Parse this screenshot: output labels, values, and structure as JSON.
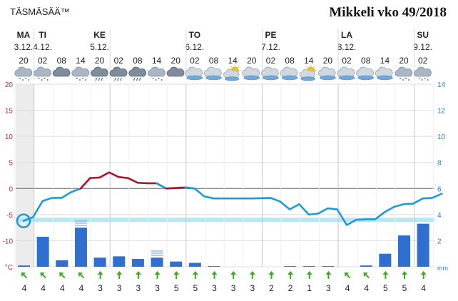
{
  "header": {
    "brand": "TÄSMÄSÄÄ™",
    "title": "Mikkeli vko 49/2018"
  },
  "chart_data": {
    "type": "line",
    "days": [
      {
        "name": "MA",
        "date": "3.12."
      },
      {
        "name": "TI",
        "date": "4.12."
      },
      {
        "name": "KE",
        "date": "5.12."
      },
      {
        "name": "TO",
        "date": "6.12."
      },
      {
        "name": "PE",
        "date": "7.12."
      },
      {
        "name": "LA",
        "date": "8.12."
      },
      {
        "name": "SU",
        "date": "9.12."
      }
    ],
    "hours": [
      "20",
      "02",
      "08",
      "14",
      "20",
      "02",
      "08",
      "14",
      "20",
      "02",
      "08",
      "14",
      "20",
      "02",
      "08",
      "14",
      "20",
      "02",
      "08",
      "14",
      "20",
      "02"
    ],
    "icons": [
      "cloud-snow-icon",
      "cloud-snow-icon",
      "cloud-icon",
      "cloud-snow-icon",
      "cloud-rain-icon",
      "cloud-rain-icon",
      "cloud-rain-icon",
      "cloud-snow-icon",
      "cloud-icon",
      "overcast-icon",
      "overcast-icon",
      "partly-sunny-icon",
      "overcast-icon",
      "overcast-icon",
      "overcast-icon",
      "partly-sunny-icon",
      "overcast-icon",
      "overcast-icon",
      "overcast-icon",
      "overcast-icon",
      "cloud-snow-icon",
      "cloud-snow-icon"
    ],
    "temperature": {
      "unit": "°C",
      "ylim": [
        -15,
        20
      ],
      "ticks": [
        20,
        15,
        10,
        5,
        0,
        -5,
        -10
      ],
      "points": [
        {
          "t": 0,
          "v": -6.2
        },
        {
          "t": 0.5,
          "v": -5.5
        },
        {
          "t": 1.0,
          "v": -2.4
        },
        {
          "t": 1.5,
          "v": -1.8
        },
        {
          "t": 2.0,
          "v": -1.8
        },
        {
          "t": 2.5,
          "v": -0.7
        },
        {
          "t": 3.0,
          "v": 0.0
        },
        {
          "t": 3.5,
          "v": 2.0
        },
        {
          "t": 4.0,
          "v": 2.1
        },
        {
          "t": 4.5,
          "v": 3.1
        },
        {
          "t": 5.0,
          "v": 2.2
        },
        {
          "t": 5.5,
          "v": 2.0
        },
        {
          "t": 6.0,
          "v": 1.1
        },
        {
          "t": 6.5,
          "v": 1.0
        },
        {
          "t": 7.0,
          "v": 1.0
        },
        {
          "t": 7.5,
          "v": 0.0
        },
        {
          "t": 8.0,
          "v": 0.1
        },
        {
          "t": 8.5,
          "v": 0.2
        },
        {
          "t": 9.0,
          "v": 0.0
        },
        {
          "t": 9.5,
          "v": -1.5
        },
        {
          "t": 10.0,
          "v": -1.9
        },
        {
          "t": 11.0,
          "v": -1.9
        },
        {
          "t": 12.0,
          "v": -1.9
        },
        {
          "t": 13.0,
          "v": -1.8
        },
        {
          "t": 13.5,
          "v": -2.5
        },
        {
          "t": 14.0,
          "v": -4.0
        },
        {
          "t": 14.5,
          "v": -3.0
        },
        {
          "t": 15.0,
          "v": -5.0
        },
        {
          "t": 15.5,
          "v": -4.8
        },
        {
          "t": 16.0,
          "v": -3.8
        },
        {
          "t": 16.5,
          "v": -4.0
        },
        {
          "t": 17.0,
          "v": -7.0
        },
        {
          "t": 17.5,
          "v": -6.0
        },
        {
          "t": 18.0,
          "v": -5.9
        },
        {
          "t": 18.5,
          "v": -5.9
        },
        {
          "t": 19.0,
          "v": -4.5
        },
        {
          "t": 19.5,
          "v": -3.5
        },
        {
          "t": 20.0,
          "v": -3.0
        },
        {
          "t": 20.5,
          "v": -2.9
        },
        {
          "t": 21.0,
          "v": -1.9
        },
        {
          "t": 21.5,
          "v": -1.8
        },
        {
          "t": 22.0,
          "v": -1.0
        }
      ],
      "freezing_level": -6,
      "current_value": -6.2
    },
    "precipitation": {
      "unit": "mm",
      "ylim": [
        0,
        14
      ],
      "ticks": [
        14,
        12,
        10,
        8,
        6,
        4,
        2
      ],
      "values": [
        0.1,
        2.3,
        0.5,
        3.0,
        0.7,
        0.8,
        0.6,
        0.7,
        0.4,
        0.3,
        0.05,
        0.0,
        0.0,
        0.0,
        0.05,
        0.05,
        0.05,
        0.0,
        0.1,
        1.0,
        2.4,
        3.3
      ],
      "snow": [
        false,
        false,
        false,
        true,
        false,
        false,
        false,
        true,
        false,
        false,
        false,
        false,
        false,
        false,
        false,
        false,
        false,
        false,
        false,
        false,
        false,
        false
      ]
    },
    "wind": {
      "speeds": [
        4,
        4,
        4,
        4,
        3,
        3,
        3,
        3,
        5,
        5,
        3,
        3,
        3,
        2,
        2,
        1,
        3,
        4,
        4,
        5,
        5,
        4
      ],
      "directions": [
        "NW",
        "NW",
        "NW",
        "NW",
        "N",
        "N",
        "N",
        "N",
        "N",
        "N",
        "N",
        "N",
        "N",
        "N",
        "N",
        "N",
        "N",
        "NW",
        "NW",
        "N",
        "N",
        "N"
      ]
    },
    "colors": {
      "warm_line": "#b0122a",
      "cold_line": "#1e9ad6",
      "bar": "#2f6fd1",
      "frost_band": "#b7e6f5",
      "grid": "#dedede",
      "axis_temp": "#c0283a",
      "axis_precip": "#2a7fd0",
      "wind_arrow": "#43a82a"
    }
  }
}
